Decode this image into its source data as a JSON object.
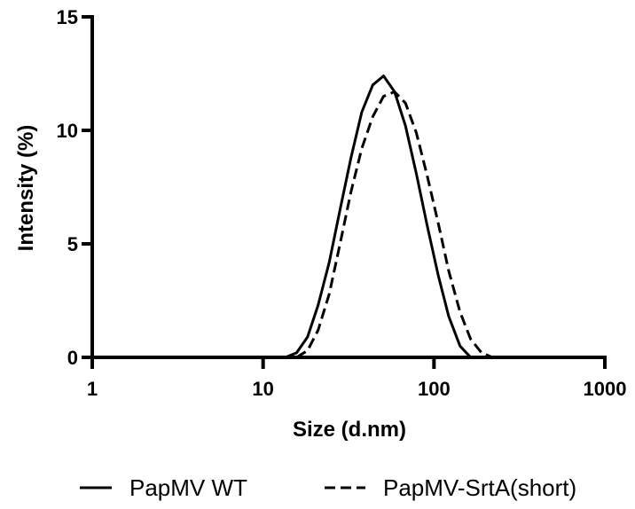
{
  "chart_data": {
    "type": "line",
    "xlabel": "Size (d.nm)",
    "ylabel": "Intensity (%)",
    "x_scale": "log",
    "xlim": [
      1,
      1000
    ],
    "ylim": [
      0,
      15
    ],
    "x_ticks": [
      1,
      10,
      100,
      1000
    ],
    "x_tick_labels": [
      "1",
      "10",
      "100",
      "1000"
    ],
    "y_ticks": [
      0,
      5,
      10,
      15
    ],
    "y_tick_labels": [
      "0",
      "5",
      "10",
      "15"
    ],
    "grid": false,
    "legend_position": "bottom",
    "series": [
      {
        "name": "PapMV WT",
        "line_style": "solid",
        "color": "#000000",
        "x": [
          13.5,
          15.7,
          18.2,
          21.0,
          24.4,
          28.2,
          32.7,
          37.8,
          43.8,
          50.7,
          58.8,
          68.1,
          78.8,
          91.3,
          106,
          122,
          142,
          164,
          190
        ],
        "y": [
          0.0,
          0.2,
          0.9,
          2.3,
          4.2,
          6.5,
          8.8,
          10.8,
          12.0,
          12.4,
          11.7,
          10.2,
          8.1,
          5.8,
          3.6,
          1.8,
          0.5,
          0.0,
          0.0
        ]
      },
      {
        "name": "PapMV-SrtA(short)",
        "line_style": "dashed",
        "color": "#000000",
        "x": [
          15.7,
          18.2,
          21.0,
          24.4,
          28.2,
          32.7,
          37.8,
          43.8,
          50.7,
          58.8,
          68.1,
          78.8,
          91.3,
          106,
          122,
          142,
          164,
          190,
          220,
          255
        ],
        "y": [
          0.0,
          0.3,
          1.2,
          2.8,
          5.0,
          7.3,
          9.2,
          10.6,
          11.5,
          11.7,
          11.2,
          9.9,
          8.0,
          5.9,
          3.8,
          2.0,
          0.8,
          0.2,
          0.0,
          0.0
        ]
      }
    ]
  }
}
